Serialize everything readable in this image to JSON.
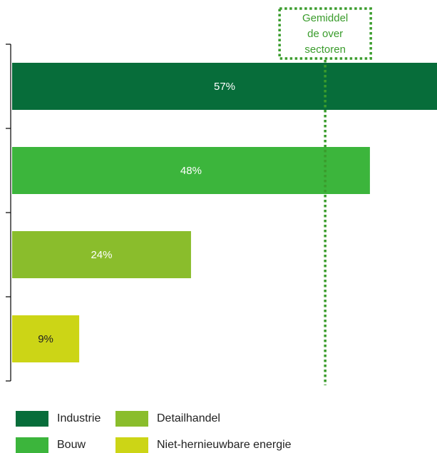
{
  "chart_data": {
    "type": "bar",
    "orientation": "horizontal",
    "categories": [
      "Industrie",
      "Bouw",
      "Detailhandel",
      "Niet-hernieuwbare energie"
    ],
    "values": [
      57,
      48,
      24,
      9
    ],
    "value_labels": [
      "57%",
      "48%",
      "24%",
      "9%"
    ],
    "colors": [
      "#076d3a",
      "#3cb53c",
      "#8abd2c",
      "#ccd516"
    ],
    "label_colors": [
      "#ffffff",
      "#ffffff",
      "#ffffff",
      "#222222"
    ],
    "xlim": [
      0,
      57
    ],
    "reference_line": {
      "value": 42,
      "label_lines": [
        "Gemiddel",
        "de over",
        "sectoren"
      ],
      "color": "#3a9c2c",
      "style": "dotted"
    },
    "legend": {
      "placement": "bottom",
      "items": [
        {
          "label": "Industrie",
          "color": "#076d3a"
        },
        {
          "label": "Detailhandel",
          "color": "#8abd2c"
        },
        {
          "label": "Bouw",
          "color": "#3cb53c"
        },
        {
          "label": "Niet-hernieuwbare energie",
          "color": "#ccd516"
        }
      ]
    }
  }
}
